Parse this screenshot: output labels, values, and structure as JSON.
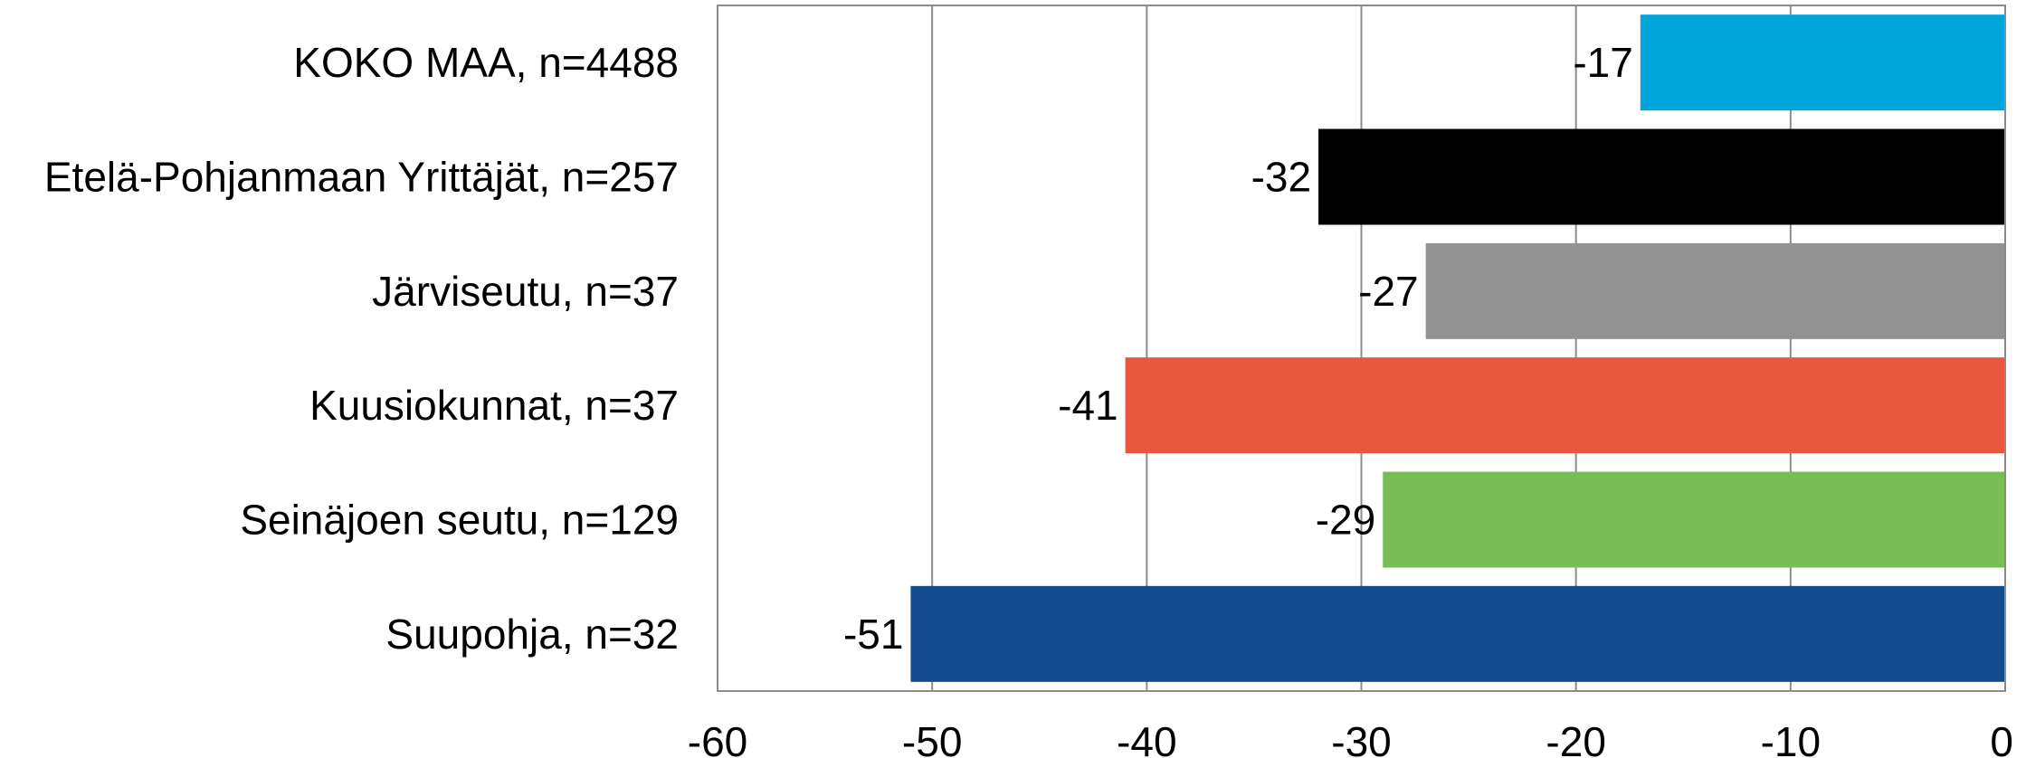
{
  "chart_data": {
    "type": "bar",
    "orientation": "horizontal",
    "categories": [
      "KOKO MAA, n=4488",
      "Etelä-Pohjanmaan Yrittäjät, n=257",
      "Järviseutu, n=37",
      "Kuusiokunnat, n=37",
      "Seinäjoen seutu, n=129",
      "Suupohja, n=32"
    ],
    "values": [
      -17,
      -32,
      -27,
      -41,
      -29,
      -51
    ],
    "data_labels": [
      "-17",
      "-32",
      "-27",
      "-41",
      "-29",
      "-51"
    ],
    "colors": [
      "#00a5dc",
      "#000000",
      "#929292",
      "#e8573f",
      "#79bd55",
      "#134b8f"
    ],
    "xlim": [
      -60,
      0
    ],
    "x_ticks": [
      -60,
      -50,
      -40,
      -30,
      -20,
      -10,
      0
    ],
    "x_tick_labels": [
      "-60",
      "-50",
      "-40",
      "-30",
      "-20",
      "-10",
      "0"
    ],
    "grid": true,
    "title": "",
    "xlabel": "",
    "ylabel": ""
  }
}
